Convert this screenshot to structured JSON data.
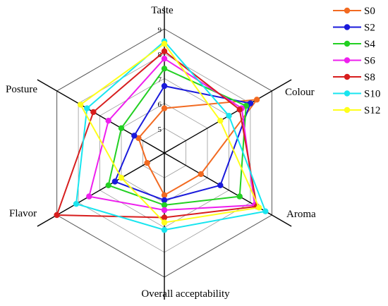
{
  "chart_data": {
    "type": "radar",
    "axes": [
      "Taste",
      "Colour",
      "Aroma",
      "Overall acceptability",
      "Flavor",
      "Posture"
    ],
    "range": [
      4,
      9
    ],
    "tick_labels": [
      "5",
      "6",
      "7",
      "8",
      "9"
    ],
    "series": [
      {
        "name": "S0",
        "color": "#f26a21",
        "values": [
          5.8,
          8.3,
          5.7,
          5.7,
          4.8,
          5.2
        ]
      },
      {
        "name": "S2",
        "color": "#1a1adb",
        "values": [
          6.7,
          8.0,
          6.6,
          5.9,
          6.3,
          5.4
        ]
      },
      {
        "name": "S4",
        "color": "#22d022",
        "values": [
          7.4,
          7.8,
          7.5,
          6.1,
          6.6,
          6.0
        ]
      },
      {
        "name": "S6",
        "color": "#ee1fee",
        "values": [
          7.8,
          7.6,
          8.2,
          6.3,
          7.5,
          6.6
        ]
      },
      {
        "name": "S8",
        "color": "#d71e1e",
        "values": [
          8.1,
          7.5,
          8.3,
          6.6,
          9.0,
          7.3
        ]
      },
      {
        "name": "S10",
        "color": "#18e5ef",
        "values": [
          8.5,
          7.0,
          8.7,
          7.1,
          8.1,
          7.6
        ]
      },
      {
        "name": "S12",
        "color": "#ffff1a",
        "values": [
          8.4,
          6.6,
          8.4,
          6.8,
          6.0,
          7.9
        ]
      }
    ]
  }
}
